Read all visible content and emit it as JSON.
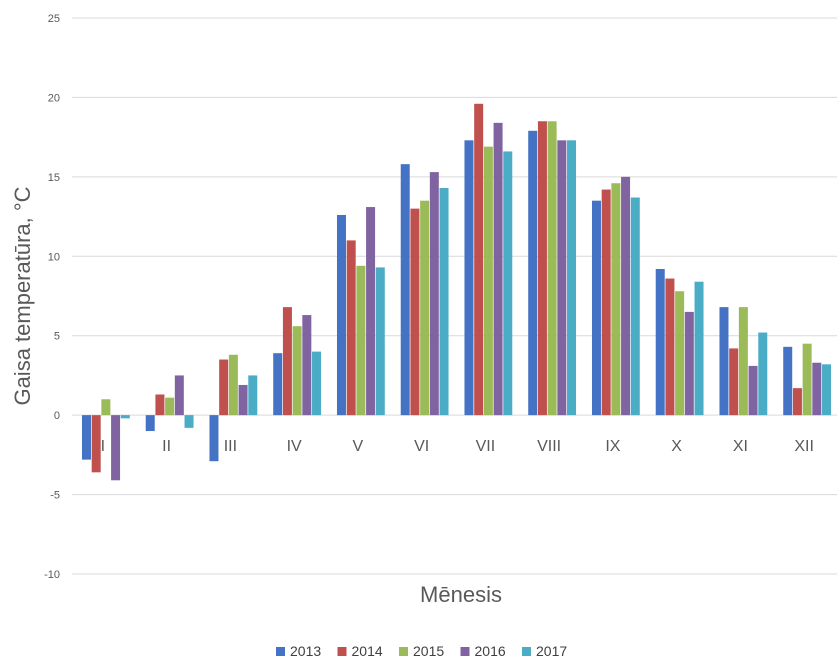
{
  "chart_data": {
    "type": "bar",
    "title": "",
    "xlabel": "Mēnesis",
    "ylabel": "Gaisa temperatūra, °C",
    "ylim": [
      -10,
      25
    ],
    "yticks": [
      "-10",
      "-5",
      "0",
      "5",
      "10",
      "15",
      "20",
      "25"
    ],
    "grid": true,
    "legend_position": "bottom",
    "categories": [
      "I",
      "II",
      "III",
      "IV",
      "V",
      "VI",
      "VII",
      "VIII",
      "IX",
      "X",
      "XI",
      "XII"
    ],
    "series": [
      {
        "name": "2013",
        "color": "#4472C4",
        "values": [
          -2.8,
          -1.0,
          -2.9,
          3.9,
          12.6,
          15.8,
          17.3,
          17.9,
          13.5,
          9.2,
          6.8,
          4.3
        ]
      },
      {
        "name": "2014",
        "color": "#C0504D",
        "values": [
          -3.6,
          1.3,
          3.5,
          6.8,
          11.0,
          13.0,
          19.6,
          18.5,
          14.2,
          8.6,
          4.2,
          1.7
        ]
      },
      {
        "name": "2015",
        "color": "#9BBB59",
        "values": [
          1.0,
          1.1,
          3.8,
          5.6,
          9.4,
          13.5,
          16.9,
          18.5,
          14.6,
          7.8,
          6.8,
          4.5
        ]
      },
      {
        "name": "2016",
        "color": "#8064A2",
        "values": [
          -4.1,
          2.5,
          1.9,
          6.3,
          13.1,
          15.3,
          18.4,
          17.3,
          15.0,
          6.5,
          3.1,
          3.3
        ]
      },
      {
        "name": "2017",
        "color": "#4BACC6",
        "values": [
          -0.2,
          -0.8,
          2.5,
          4.0,
          9.3,
          14.3,
          16.6,
          17.3,
          13.7,
          8.4,
          5.2,
          3.2
        ]
      }
    ]
  }
}
